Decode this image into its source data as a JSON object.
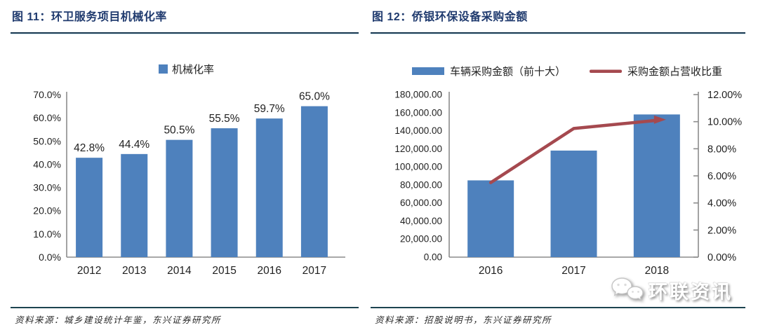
{
  "watermark": {
    "text": "环联资讯",
    "icon": "chat-bubbles-icon"
  },
  "colors": {
    "bar_blue": "#4E81BD",
    "line_red": "#A5494F",
    "title_navy": "#1F3A6E",
    "axis_gray": "#8C8C8C",
    "text_dark": "#1f1f1f"
  },
  "figures": [
    {
      "title": "图 11：环卫服务项目机械化率",
      "source": "资料来源：城乡建设统计年鉴，东兴证券研究所",
      "chart_data": {
        "type": "bar",
        "title": "",
        "legend": [
          {
            "label": "机械化率",
            "color": "#4E81BD"
          }
        ],
        "legend_position": "top",
        "categories": [
          "2012",
          "2013",
          "2014",
          "2015",
          "2016",
          "2017"
        ],
        "values": [
          42.8,
          44.4,
          50.5,
          55.5,
          59.7,
          65.0
        ],
        "data_labels": [
          "42.8%",
          "44.4%",
          "50.5%",
          "55.5%",
          "59.7%",
          "65.0%"
        ],
        "xlabel": "",
        "ylabel": "",
        "ylim": [
          0,
          70
        ],
        "ytick_labels": [
          "0.0%",
          "10.0%",
          "20.0%",
          "30.0%",
          "40.0%",
          "50.0%",
          "60.0%",
          "70.0%"
        ],
        "grid": false
      }
    },
    {
      "title": "图 12：侨银环保设备采购金额",
      "source": "资料来源：招股说明书，东兴证券研究所",
      "chart_data": {
        "type": "bar+line",
        "title": "",
        "legend_position": "top",
        "categories": [
          "2016",
          "2017",
          "2018"
        ],
        "series": [
          {
            "name": "车辆采购金额（前十大）",
            "type": "bar",
            "axis": "left",
            "values": [
              85000,
              118000,
              158000
            ],
            "color": "#4E81BD"
          },
          {
            "name": "采购金额占营收比重",
            "type": "line",
            "axis": "right",
            "values": [
              5.5,
              9.5,
              10.1
            ],
            "color": "#A5494F"
          }
        ],
        "left_axis": {
          "min": 0,
          "max": 180000,
          "tick_labels": [
            "0.00",
            "20,000.00",
            "40,000.00",
            "60,000.00",
            "80,000.00",
            "100,000.00",
            "120,000.00",
            "140,000.00",
            "160,000.00",
            "180,000.00"
          ]
        },
        "right_axis": {
          "min": 0,
          "max": 12,
          "tick_labels": [
            "0.00%",
            "2.00%",
            "4.00%",
            "6.00%",
            "8.00%",
            "10.00%",
            "12.00%"
          ]
        },
        "grid": false
      }
    }
  ]
}
